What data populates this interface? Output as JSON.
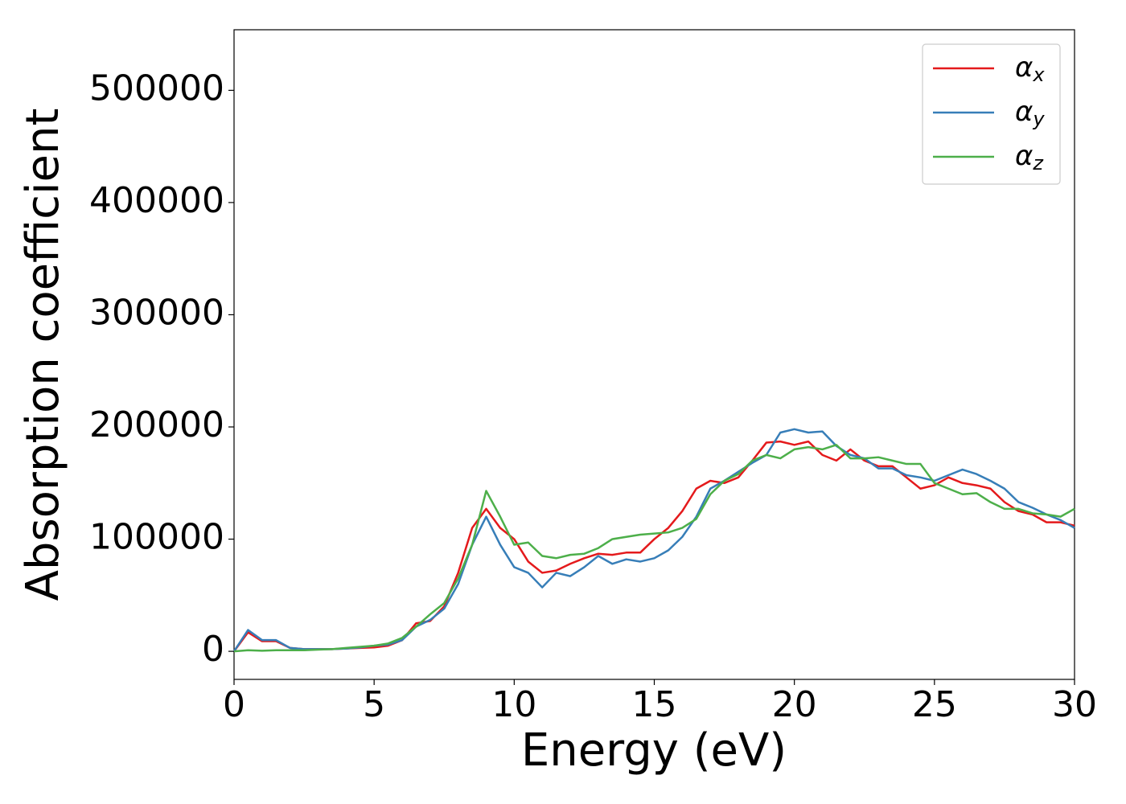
{
  "chart_data": {
    "type": "line",
    "xlabel": "Energy (eV)",
    "ylabel": "Absorption coefficient",
    "x": [
      0,
      0.5,
      1,
      1.5,
      2,
      2.5,
      3,
      3.5,
      4,
      4.5,
      5,
      5.5,
      6,
      6.5,
      7,
      7.5,
      8,
      8.5,
      9,
      9.5,
      10,
      10.5,
      11,
      11.5,
      12,
      12.5,
      13,
      13.5,
      14,
      14.5,
      15,
      15.5,
      16,
      16.5,
      17,
      17.5,
      18,
      18.5,
      19,
      19.5,
      20,
      20.5,
      21,
      21.5,
      22,
      22.5,
      23,
      23.5,
      24,
      24.5,
      25,
      25.5,
      26,
      26.5,
      27,
      27.5,
      28,
      28.5,
      29,
      29.5,
      30
    ],
    "series": [
      {
        "name": "αx",
        "color": "#e41a1c",
        "values": [
          0,
          17000,
          9000,
          9000,
          3000,
          2000,
          2000,
          2000,
          2500,
          3000,
          3500,
          5000,
          10000,
          25000,
          27000,
          40000,
          70000,
          110000,
          127000,
          110000,
          100000,
          80000,
          70000,
          72000,
          78000,
          83000,
          87000,
          86000,
          88000,
          88000,
          100000,
          110000,
          125000,
          145000,
          152000,
          150000,
          155000,
          170000,
          186000,
          187000,
          184000,
          187000,
          175000,
          170000,
          180000,
          170000,
          165000,
          165000,
          155000,
          145000,
          148000,
          155000,
          150000,
          148000,
          145000,
          133000,
          125000,
          122000,
          115000,
          115000,
          112000
        ]
      },
      {
        "name": "αy",
        "color": "#377eb8",
        "values": [
          0,
          19000,
          10000,
          10000,
          3000,
          2000,
          2000,
          2000,
          2500,
          3500,
          5000,
          6000,
          10000,
          22000,
          28000,
          38000,
          60000,
          95000,
          120000,
          95000,
          75000,
          70000,
          57000,
          70000,
          67000,
          75000,
          85000,
          78000,
          82000,
          80000,
          83000,
          90000,
          102000,
          120000,
          145000,
          152000,
          160000,
          168000,
          175000,
          195000,
          198000,
          195000,
          196000,
          183000,
          175000,
          172000,
          163000,
          163000,
          157000,
          155000,
          152000,
          157000,
          162000,
          158000,
          152000,
          145000,
          133000,
          128000,
          122000,
          117000,
          110000
        ]
      },
      {
        "name": "αz",
        "color": "#4daf4a",
        "values": [
          0,
          1000,
          500,
          1000,
          1000,
          1000,
          1500,
          2000,
          3000,
          4000,
          5000,
          7000,
          12000,
          22000,
          33000,
          43000,
          65000,
          95000,
          143000,
          120000,
          95000,
          97000,
          85000,
          83000,
          86000,
          87000,
          92000,
          100000,
          102000,
          104000,
          105000,
          106000,
          110000,
          118000,
          140000,
          152000,
          158000,
          170000,
          175000,
          172000,
          180000,
          182000,
          180000,
          184000,
          172000,
          172000,
          173000,
          170000,
          167000,
          167000,
          150000,
          145000,
          140000,
          141000,
          133000,
          127000,
          127000,
          123000,
          122000,
          120000,
          127000
        ]
      }
    ],
    "xlim": [
      0,
      30
    ],
    "xticks": [
      0,
      5,
      10,
      15,
      20,
      25,
      30
    ],
    "ylim": [
      -25000,
      554000
    ],
    "yticks": [
      0,
      100000,
      200000,
      300000,
      400000,
      500000
    ],
    "legend": "upper right"
  }
}
